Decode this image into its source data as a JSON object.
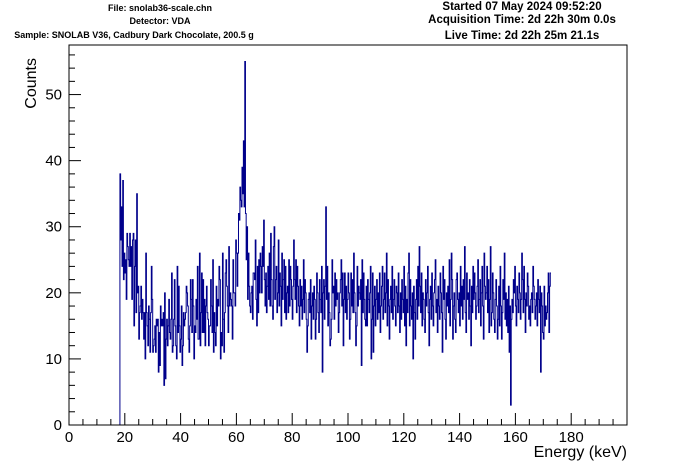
{
  "header": {
    "file": "File: snolab36-scale.chn",
    "detector": "Detector: VDA",
    "sample": "Sample: SNOLAB V36, Cadbury Dark Chocolate, 200.5 g",
    "started": "Started 07 May 2024 09:52:20",
    "acquisition": "Acquisition Time: 2d 22h 30m 0.0s",
    "live": "Live Time: 2d 22h 25m 21.1s"
  },
  "chart_data": {
    "type": "histogram",
    "xlabel": "Energy (keV)",
    "ylabel": "Counts",
    "xlim": [
      0,
      200
    ],
    "ylim": [
      0,
      57.5
    ],
    "x_ticks": [
      0,
      20,
      40,
      60,
      80,
      100,
      120,
      140,
      160,
      180
    ],
    "y_ticks": [
      0,
      10,
      20,
      30,
      40,
      50
    ],
    "grid": false,
    "line_color": "#00008b",
    "series": [
      {
        "x_start": 18,
        "bin_width": 0.25,
        "values": [
          0,
          38,
          28,
          33,
          24,
          37,
          22,
          26,
          23,
          25,
          19,
          29,
          27,
          25,
          24,
          29,
          24,
          27,
          19,
          28,
          29,
          15,
          24,
          28,
          17,
          35,
          20,
          21,
          13,
          17,
          18,
          21,
          16,
          19,
          17,
          13,
          17,
          10,
          26,
          17,
          15,
          12,
          18,
          16,
          11,
          17,
          24,
          19,
          11,
          12,
          13,
          15,
          11,
          16,
          15,
          16,
          8,
          14,
          9,
          18,
          15,
          16,
          15,
          17,
          6,
          20,
          7,
          13,
          16,
          12,
          15,
          19,
          14,
          13,
          16,
          23,
          11,
          12,
          16,
          22,
          15,
          12,
          10,
          24,
          14,
          21,
          15,
          11,
          13,
          18,
          9,
          12,
          17,
          15,
          16,
          17,
          21,
          20,
          18,
          13,
          11,
          15,
          22,
          19,
          14,
          22,
          18,
          10,
          15,
          14,
          19,
          16,
          24,
          13,
          13,
          26,
          12,
          17,
          23,
          14,
          22,
          14,
          19,
          12,
          18,
          21,
          17,
          16,
          12,
          15,
          15,
          22,
          18,
          14,
          25,
          11,
          17,
          14,
          12,
          21,
          15,
          19,
          18,
          24,
          22,
          10,
          14,
          12,
          26,
          16,
          11,
          17,
          23,
          25,
          21,
          18,
          14,
          27,
          18,
          20,
          19,
          18,
          13,
          25,
          20,
          20,
          18,
          28,
          26,
          21,
          26,
          32,
          31,
          36,
          34,
          33,
          39,
          35,
          43,
          33,
          55,
          32,
          25,
          30,
          19,
          26,
          21,
          18,
          17,
          20,
          21,
          16,
          23,
          23,
          22,
          28,
          19,
          15,
          24,
          17,
          25,
          20,
          26,
          24,
          20,
          27,
          24,
          31,
          22,
          18,
          23,
          17,
          21,
          24,
          19,
          26,
          18,
          29,
          22,
          18,
          16,
          27,
          30,
          19,
          22,
          24,
          17,
          20,
          28,
          18,
          23,
          21,
          15,
          26,
          19,
          22,
          25,
          17,
          24,
          16,
          20,
          21,
          17,
          25,
          18,
          24,
          22,
          19,
          16,
          21,
          28,
          22,
          19,
          25,
          17,
          24,
          21,
          18,
          15,
          22,
          18,
          21,
          16,
          19,
          25,
          17,
          22,
          20,
          16,
          11,
          15,
          19,
          20,
          17,
          22,
          13,
          18,
          20,
          16,
          21,
          19,
          13,
          16,
          23,
          20,
          17,
          14,
          22,
          19,
          17,
          24,
          8,
          20,
          22,
          16,
          21,
          33,
          19,
          24,
          15,
          20,
          17,
          12,
          13,
          16,
          25,
          20,
          21,
          16,
          23,
          18,
          22,
          19,
          20,
          14,
          17,
          20,
          22,
          25,
          18,
          23,
          12,
          19,
          23,
          17,
          21,
          16,
          19,
          23,
          20,
          13,
          16,
          23,
          18,
          22,
          17,
          26,
          20,
          17,
          12,
          15,
          24,
          18,
          21,
          20,
          19,
          22,
          9,
          25,
          17,
          23,
          19,
          16,
          15,
          21,
          15,
          22,
          19,
          17,
          20,
          24,
          10,
          16,
          23,
          11,
          18,
          21,
          15,
          19,
          22,
          16,
          20,
          17,
          23,
          14,
          18,
          21,
          24,
          16,
          19,
          23,
          17,
          20,
          26,
          15,
          22,
          18,
          13,
          19,
          21,
          17,
          24,
          16,
          19,
          22,
          18,
          15,
          21,
          20,
          17,
          23,
          18,
          14,
          20,
          16,
          22,
          19,
          17,
          24,
          15,
          21,
          12,
          19,
          17,
          23,
          26,
          15,
          22,
          18,
          16,
          20,
          10,
          21,
          17,
          13,
          19,
          22,
          16,
          24,
          18,
          27,
          21,
          17,
          23,
          15,
          20,
          19,
          16,
          14,
          22,
          18,
          20,
          24,
          17,
          12,
          19,
          21,
          16,
          23,
          18,
          15,
          20,
          22,
          25,
          17,
          19,
          14,
          21,
          18,
          16,
          23,
          20,
          17,
          11,
          24,
          19,
          22,
          16,
          13,
          20,
          18,
          21,
          17,
          25,
          15,
          19,
          26,
          22,
          13,
          18,
          20,
          16,
          14,
          22,
          23,
          19,
          17,
          20,
          15,
          24,
          18,
          21,
          16,
          22,
          19,
          27,
          17,
          14,
          23,
          19,
          20,
          16,
          22,
          18,
          12,
          21,
          17,
          24,
          19,
          23,
          20,
          16,
          18,
          21,
          25,
          17,
          19,
          22,
          15,
          20,
          24,
          18,
          13,
          26,
          21,
          19,
          20,
          24,
          17,
          22,
          14,
          19,
          27,
          15,
          17,
          23,
          20,
          16,
          14,
          19,
          22,
          18,
          13,
          16,
          21,
          15,
          24,
          18,
          13,
          17,
          22,
          19,
          26,
          16,
          20,
          15,
          19,
          14,
          21,
          11,
          18,
          3,
          16,
          19,
          17,
          22,
          20,
          24,
          18,
          15,
          21,
          19,
          17,
          23,
          20,
          16,
          19,
          26,
          22,
          17,
          24,
          19,
          14,
          20,
          18,
          23,
          21,
          16,
          18,
          15,
          19,
          20,
          17,
          24,
          21,
          19,
          16,
          18,
          20,
          15,
          22,
          19,
          17,
          21,
          8,
          20,
          18,
          14,
          13,
          21,
          15,
          18,
          16,
          17,
          20,
          23,
          14,
          21,
          23
        ]
      }
    ]
  }
}
